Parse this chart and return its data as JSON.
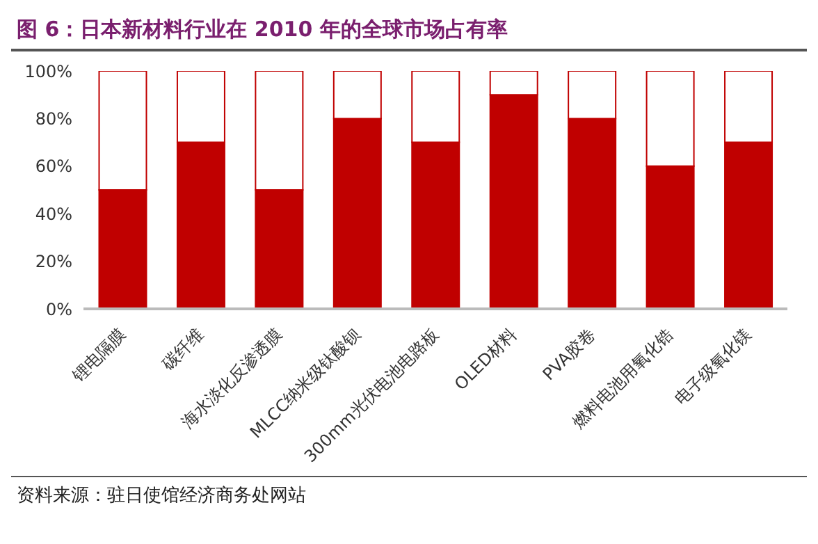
{
  "chart_data": {
    "type": "bar",
    "title": "图 6：日本新材料行业在 2010 年的全球市场占有率",
    "categories": [
      "锂电隔膜",
      "碳纤维",
      "海水淡化反渗透膜",
      "MLCC纳米级钛酸钡",
      "300mm光伏电池电路板",
      "OLED材料",
      "PVA胶卷",
      "燃料电池用氧化锆",
      "电子级氧化镁"
    ],
    "series": [
      {
        "color": "#c00000",
        "values": [
          50,
          70,
          50,
          80,
          70,
          90,
          80,
          60,
          70
        ]
      },
      {
        "color": "#ffffff",
        "values": [
          50,
          30,
          50,
          20,
          30,
          10,
          20,
          40,
          30
        ]
      }
    ],
    "stacked": true,
    "ylim": [
      0,
      100
    ],
    "yticks": [
      {
        "value": 0,
        "label": "0%"
      },
      {
        "value": 20,
        "label": "20%"
      },
      {
        "value": 40,
        "label": "40%"
      },
      {
        "value": 60,
        "label": "60%"
      },
      {
        "value": 80,
        "label": "80%"
      },
      {
        "value": 100,
        "label": "100%"
      }
    ],
    "grid": false,
    "legend": false,
    "annotations": [
      "资料来源：驻日使馆经济商务处网站"
    ]
  }
}
